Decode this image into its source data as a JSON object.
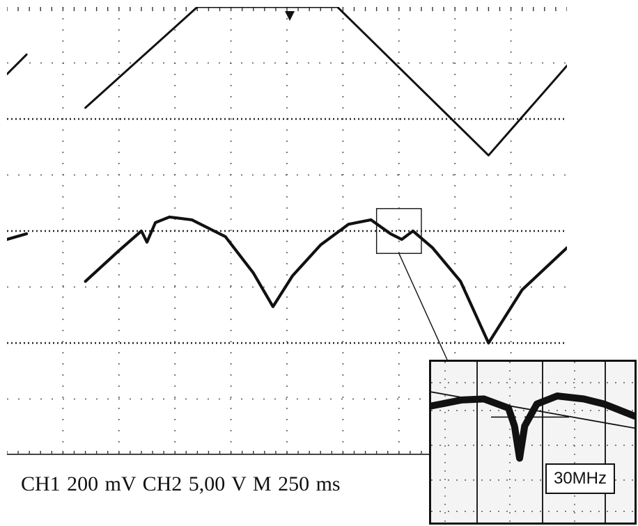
{
  "chart_data": {
    "type": "line",
    "title": "",
    "xlabel": "",
    "ylabel": "",
    "grid": true,
    "grid_divisions": {
      "x": 10,
      "y": 8
    },
    "xlim": [
      0,
      10
    ],
    "ylim": [
      0,
      8
    ],
    "series": [
      {
        "channel": "CH2",
        "shape": "triangle",
        "x": [
          0.0,
          0.35,
          0.35,
          1.4,
          3.4,
          5.9,
          8.6,
          10.0
        ],
        "y": [
          6.8,
          7.15,
          null,
          6.2,
          8.0,
          8.0,
          5.35,
          6.95
        ]
      },
      {
        "channel": "CH1",
        "shape": "rectified",
        "x": [
          0.0,
          0.35,
          0.35,
          1.4,
          2.0,
          2.4,
          2.5,
          2.65,
          2.9,
          3.3,
          3.9,
          4.4,
          4.75,
          5.1,
          5.6,
          6.1,
          6.5,
          6.85,
          7.05,
          7.25,
          7.6,
          8.1,
          8.6,
          9.2,
          10.0
        ],
        "y": [
          3.85,
          3.95,
          null,
          3.1,
          3.65,
          4.0,
          3.8,
          4.15,
          4.25,
          4.2,
          3.9,
          3.25,
          2.65,
          3.2,
          3.75,
          4.12,
          4.2,
          3.95,
          3.85,
          4.0,
          3.7,
          3.1,
          2.0,
          2.95,
          3.7
        ]
      }
    ],
    "zoom_box": {
      "x": [
        6.6,
        7.4
      ],
      "y": [
        3.6,
        4.4
      ]
    },
    "inset": {
      "label": "30MHz",
      "x": [
        0.0,
        1.5,
        2.6,
        3.8,
        4.1,
        4.35,
        4.6,
        5.2,
        6.2,
        7.5,
        8.5,
        10.0
      ],
      "y": [
        5.8,
        6.1,
        6.15,
        5.7,
        4.8,
        3.2,
        4.8,
        5.9,
        6.3,
        6.15,
        5.9,
        5.3
      ],
      "line_x": [
        0.0,
        10.0
      ],
      "line_y": [
        6.5,
        4.7
      ]
    },
    "settings": "CH1 200 mV  CH2 5,00 V  M 250 ms"
  }
}
